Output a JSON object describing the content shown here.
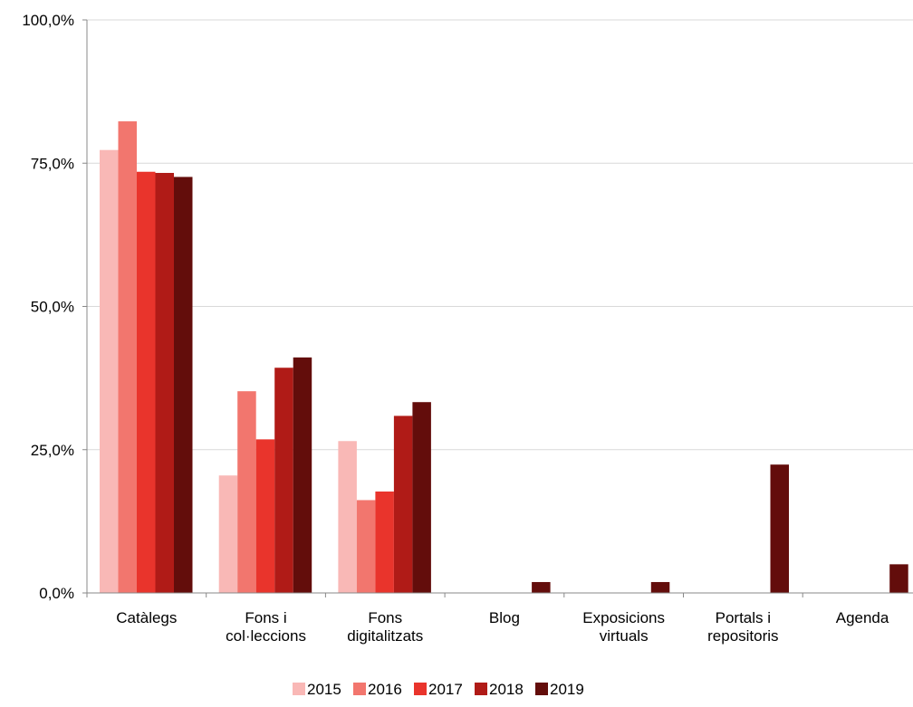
{
  "chart_data": {
    "type": "bar",
    "title": "",
    "xlabel": "",
    "ylabel": "",
    "ylim": [
      0,
      100
    ],
    "y_ticks": [
      "0,0%",
      "25,0%",
      "50,0%",
      "75,0%",
      "100,0%"
    ],
    "grid": true,
    "legend_position": "bottom",
    "categories": [
      [
        "Catàlegs"
      ],
      [
        "Fons i",
        "col·leccions"
      ],
      [
        "Fons",
        "digitalitzats"
      ],
      [
        "Blog"
      ],
      [
        "Exposicions",
        "virtuals"
      ],
      [
        "Portals i",
        "repositoris"
      ],
      [
        "Agenda"
      ]
    ],
    "series": [
      {
        "name": "2015",
        "color": "#f9b8b6",
        "values": [
          77.3,
          20.5,
          26.5,
          0,
          0,
          0,
          0
        ]
      },
      {
        "name": "2016",
        "color": "#f2766e",
        "values": [
          82.3,
          35.2,
          16.2,
          0,
          0,
          0,
          0
        ]
      },
      {
        "name": "2017",
        "color": "#e9342c",
        "values": [
          73.5,
          26.8,
          17.7,
          0,
          0,
          0,
          0
        ]
      },
      {
        "name": "2018",
        "color": "#b01b17",
        "values": [
          73.3,
          39.3,
          30.9,
          0,
          0,
          0,
          0
        ]
      },
      {
        "name": "2019",
        "color": "#630d0b",
        "values": [
          72.6,
          41.1,
          33.3,
          1.9,
          1.9,
          22.4,
          5.0
        ]
      }
    ]
  }
}
